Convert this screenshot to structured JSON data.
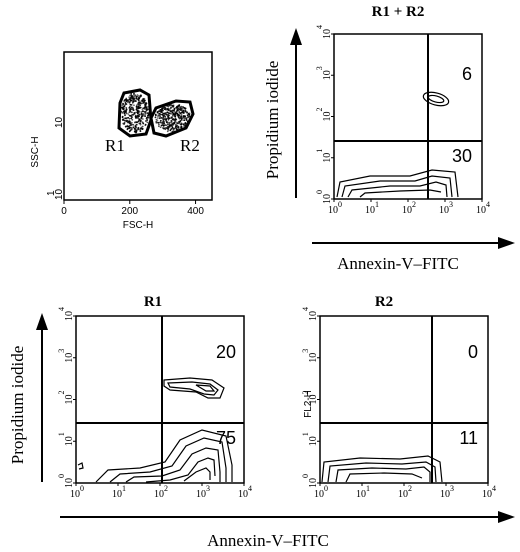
{
  "chart_data": [
    {
      "id": "scatter",
      "type": "scatter",
      "xlabel": "FSC-H",
      "ylabel": "SSC-H",
      "xlim": [
        0,
        450
      ],
      "x_ticks": [
        "0",
        "200",
        "400"
      ],
      "y_ticks": [
        "10",
        "10",
        "1"
      ],
      "gates": [
        {
          "label": "R1",
          "center": [
            220,
            10
          ]
        },
        {
          "label": "R2",
          "center": [
            345,
            10
          ]
        }
      ]
    },
    {
      "id": "r1r2",
      "type": "contour",
      "title": "R1 + R2",
      "xlabel": "Annexin-V–FITC",
      "ylabel": "Propidium iodide",
      "scale": "log",
      "xlim": [
        1,
        10000
      ],
      "ylim": [
        1,
        10000
      ],
      "x_ticks": [
        "10",
        "10",
        "10",
        "10",
        "10"
      ],
      "x_exps": [
        "0",
        "1",
        "2",
        "3",
        "4"
      ],
      "y_ticks": [
        "10",
        "10",
        "10",
        "10",
        "10"
      ],
      "y_exps": [
        "0",
        "1",
        "2",
        "3",
        "4"
      ],
      "quadrant_values": {
        "upper_right": "6",
        "lower_right": "30"
      }
    },
    {
      "id": "r1",
      "type": "contour",
      "title": "R1",
      "xlabel": "",
      "ylabel": "Propidium iodide",
      "scale": "log",
      "xlim": [
        1,
        10000
      ],
      "ylim": [
        1,
        10000
      ],
      "x_ticks": [
        "10",
        "10",
        "10",
        "10",
        "10"
      ],
      "x_exps": [
        "0",
        "1",
        "2",
        "3",
        "4"
      ],
      "y_ticks": [
        "10",
        "10",
        "10",
        "10",
        "10"
      ],
      "y_exps": [
        "0",
        "1",
        "2",
        "3",
        "4"
      ],
      "quadrant_values": {
        "upper_right": "20",
        "lower_right": "75"
      }
    },
    {
      "id": "r2",
      "type": "contour",
      "title": "R2",
      "xlabel": "",
      "ylabel": "FL2-H",
      "scale": "log",
      "xlim": [
        1,
        10000
      ],
      "ylim": [
        1,
        10000
      ],
      "x_ticks": [
        "10",
        "10",
        "10",
        "10",
        "10"
      ],
      "x_exps": [
        "0",
        "1",
        "2",
        "3",
        "4"
      ],
      "y_ticks": [
        "10",
        "10",
        "10",
        "10",
        "10"
      ],
      "y_exps": [
        "0",
        "1",
        "2",
        "3",
        "4"
      ],
      "quadrant_values": {
        "upper_right": "0",
        "lower_right": "11"
      }
    }
  ],
  "bottom_axis": {
    "xlabel": "Annexin-V–FITC"
  }
}
